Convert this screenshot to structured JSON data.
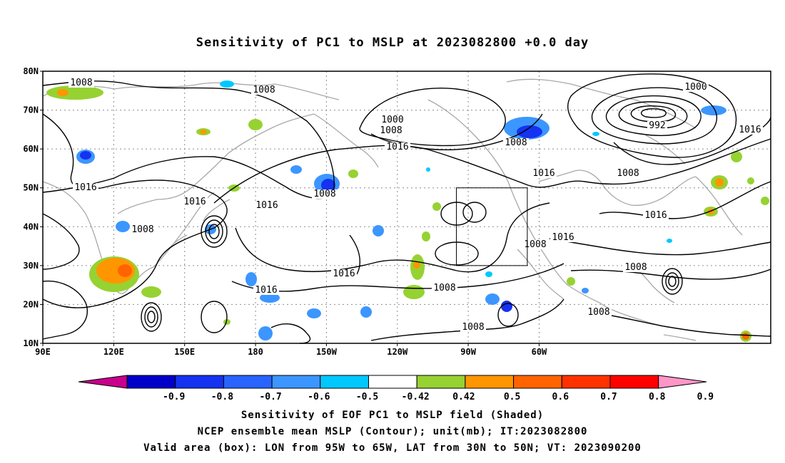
{
  "title": "Sensitivity of PC1 to MSLP at 2023082800 +0.0 day",
  "lat_labels": [
    "80N",
    "70N",
    "60N",
    "50N",
    "40N",
    "30N",
    "20N",
    "10N"
  ],
  "lon_labels": [
    "90E",
    "120E",
    "150E",
    "180",
    "150W",
    "120W",
    "90W",
    "60W"
  ],
  "contour_labels": [
    "1008",
    "1008",
    "1000",
    "1008",
    "1016",
    "1008",
    "1016",
    "1008",
    "1008",
    "1000",
    "992",
    "1016",
    "1016",
    "1016",
    "1008",
    "1016",
    "1016",
    "1008",
    "1016",
    "1008",
    "1016",
    "1016",
    "1008",
    "1008",
    "1008"
  ],
  "colorbar": {
    "labels": [
      "-0.9",
      "-0.8",
      "-0.7",
      "-0.6",
      "-0.5",
      "-0.42",
      "0.42",
      "0.5",
      "0.6",
      "0.7",
      "0.8",
      "0.9"
    ],
    "colors": [
      "#c8008c",
      "#0000c8",
      "#1432f0",
      "#2864ff",
      "#3c96ff",
      "#00c8ff",
      "#ffffff",
      "#96d232",
      "#ff9600",
      "#ff6400",
      "#ff3200",
      "#ff0000",
      "#ff96c8"
    ]
  },
  "valid_box": {
    "lon_min": -95,
    "lon_max": -65,
    "lat_min": 30,
    "lat_max": 50
  },
  "captions": [
    "Sensitivity of EOF PC1 to MSLP field (Shaded)",
    "NCEP ensemble mean MSLP (Contour); unit(mb); IT:2023082800",
    "Valid area (box): LON from 95W to 65W, LAT from 30N to 50N; VT: 2023090200"
  ]
}
